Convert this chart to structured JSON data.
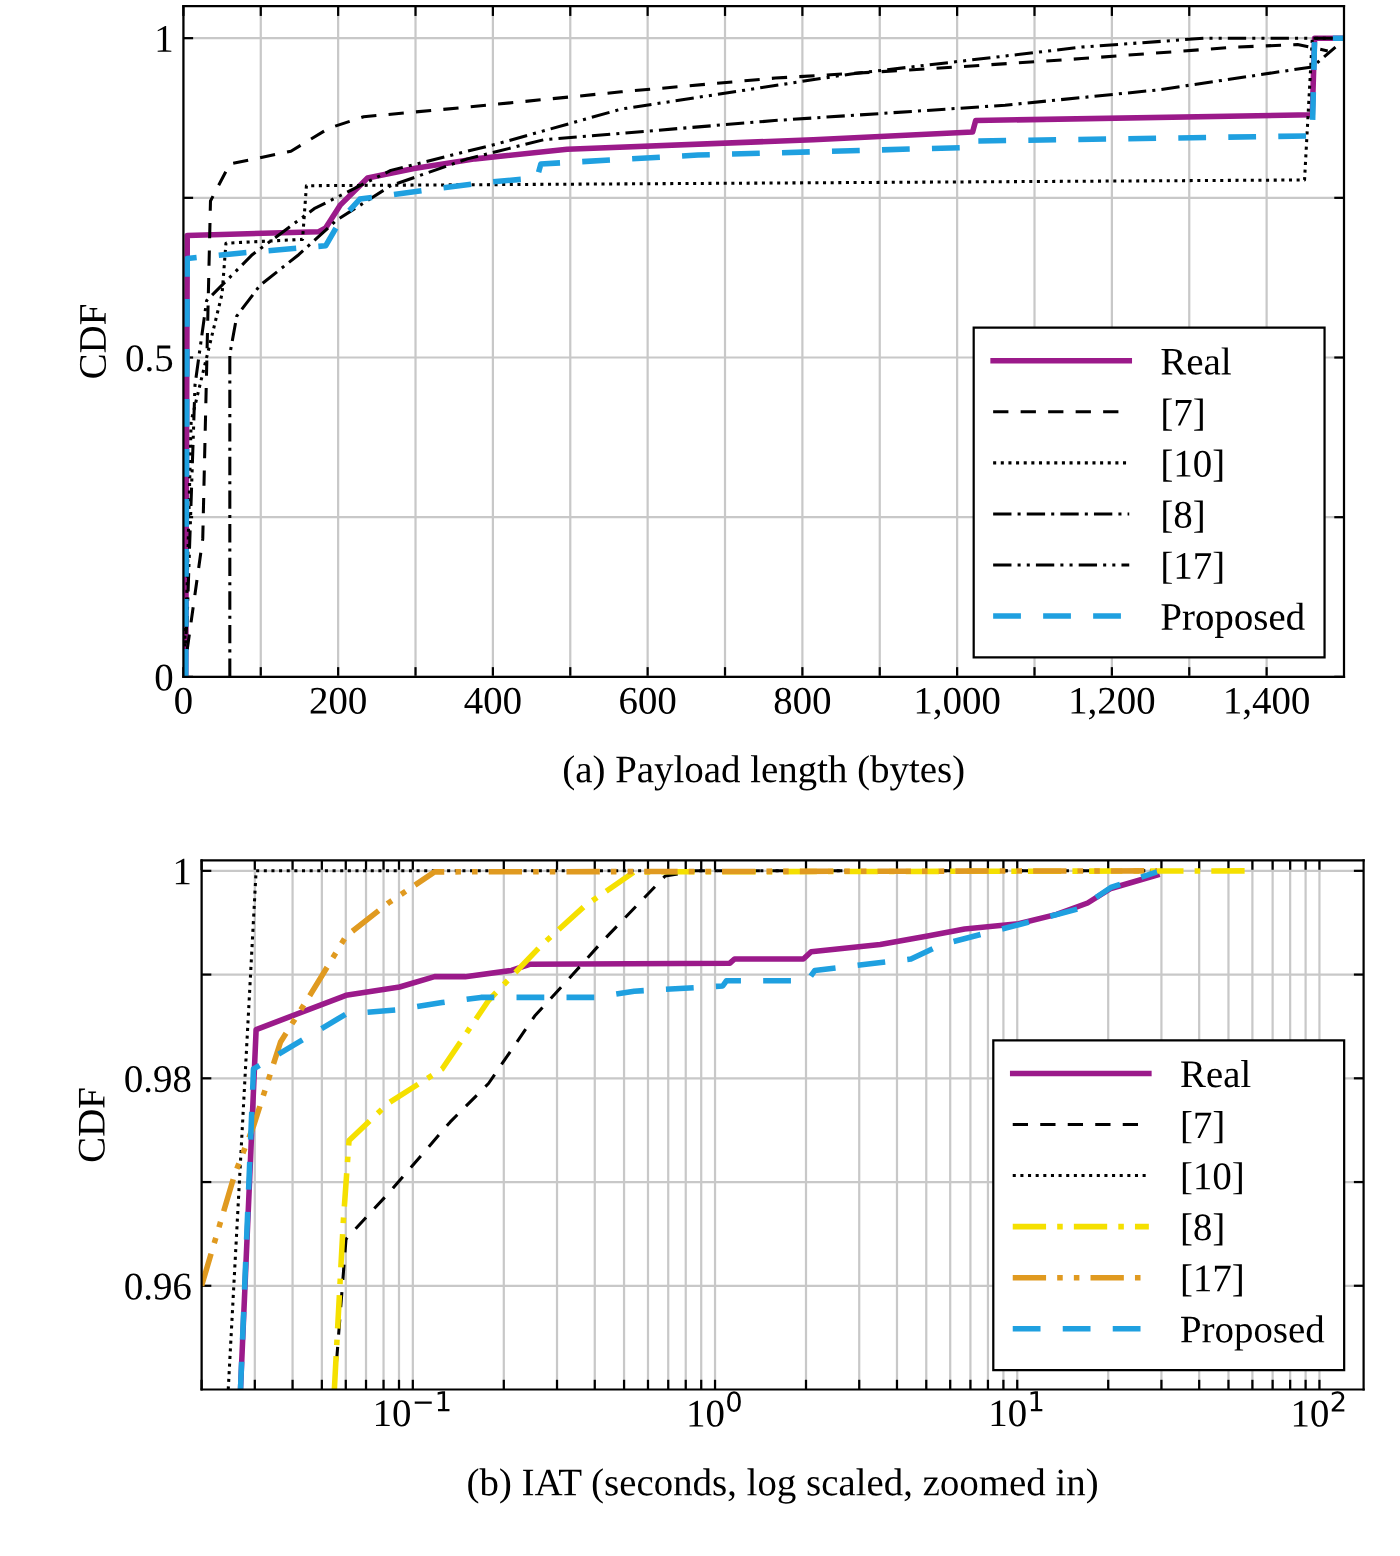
{
  "chart_data": [
    {
      "type": "line",
      "xlabel": "(a) Payload length (bytes)",
      "ylabel": "CDF",
      "xlim": [
        0,
        1500
      ],
      "ylim": [
        0,
        1.05
      ],
      "xticks": [
        0,
        {
          "value": 100,
          "label": null
        },
        200,
        {
          "value": 300,
          "label": null
        },
        400,
        {
          "value": 500,
          "label": null
        },
        600,
        {
          "value": 700,
          "label": null
        },
        800,
        {
          "value": 900,
          "label": null
        },
        {
          "value": 1000,
          "label": "1,000"
        },
        {
          "value": 1100,
          "label": null
        },
        {
          "value": 1200,
          "label": "1,200"
        },
        {
          "value": 1300,
          "label": null
        },
        {
          "value": 1400,
          "label": "1,400"
        }
      ],
      "yticks": [
        0,
        {
          "value": 0.25,
          "label": null
        },
        0.5,
        {
          "value": 0.75,
          "label": null
        },
        1
      ],
      "grid": true,
      "legend": "bottom right",
      "series": [
        {
          "name": "Real",
          "color": "#9b1a8a",
          "line_style": "solid",
          "x": [
            3,
            5,
            175,
            184,
            203,
            238,
            298,
            377,
            496,
            814,
            1020,
            1024,
            1459,
            1462,
            1500
          ],
          "values": [
            0,
            0.691,
            0.697,
            0.703,
            0.739,
            0.781,
            0.796,
            0.811,
            0.826,
            0.841,
            0.853,
            0.871,
            0.88,
            1.0,
            1.0
          ]
        },
        {
          "name": "[7]",
          "color": "#000000",
          "line_style": "dashed",
          "x": [
            0,
            25,
            35,
            60,
            139,
            188,
            233,
            367,
            566,
            765,
            963,
            1161,
            1360,
            1440,
            1479
          ],
          "values": [
            0,
            0.216,
            0.745,
            0.803,
            0.823,
            0.859,
            0.877,
            0.892,
            0.916,
            0.9375,
            0.952,
            0.968,
            0.986,
            0.99,
            0.98
          ]
        },
        {
          "name": "[10]",
          "color": "#000000",
          "line_style": "dotted",
          "x": [
            0,
            5,
            10,
            50,
            55,
            154,
            159,
            1449,
            1459,
            1500
          ],
          "values": [
            0,
            0.15,
            0.4,
            0.6,
            0.679,
            0.685,
            0.769,
            0.778,
            1.0,
            1.0
          ]
        },
        {
          "name": "[8]",
          "color": "#000000",
          "line_style": "dashdot",
          "x": [
            60,
            60,
            69,
            99,
            149,
            198,
            268,
            367,
            466,
            764,
            1062,
            1260,
            1459,
            1489
          ],
          "values": [
            0,
            0.505,
            0.565,
            0.613,
            0.661,
            0.715,
            0.769,
            0.811,
            0.841,
            0.871,
            0.895,
            0.919,
            0.955,
            0.986
          ]
        },
        {
          "name": "[17]",
          "color": "#000000",
          "line_style": "dashdotdot",
          "x": [
            0,
            5,
            15,
            30,
            89,
            169,
            268,
            407,
            566,
            863,
            1161,
            1320,
            1500
          ],
          "values": [
            0,
            0.096,
            0.457,
            0.589,
            0.661,
            0.733,
            0.793,
            0.835,
            0.889,
            0.944,
            0.986,
            1.0,
            1.0
          ]
        },
        {
          "name": "Proposed",
          "color": "#1fa0e0",
          "line_style": "dashed",
          "x": [
            3,
            5,
            69,
            184,
            203,
            228,
            318,
            397,
            457,
            462,
            665,
            1017,
            1022,
            1459,
            1462,
            1500
          ],
          "values": [
            0,
            0.655,
            0.663,
            0.675,
            0.715,
            0.748,
            0.763,
            0.775,
            0.781,
            0.803,
            0.817,
            0.829,
            0.839,
            0.847,
            1.0,
            1.0
          ]
        }
      ]
    },
    {
      "type": "line",
      "xlabel": "(b) IAT (seconds, log scaled, zoomed in)",
      "ylabel": "CDF",
      "log": "x",
      "xlim": [
        0.02,
        140
      ],
      "ylim": [
        0.95,
        1.001
      ],
      "xticks": [
        {
          "value": 0.02,
          "label": null
        },
        {
          "value": 0.03,
          "label": null
        },
        {
          "value": 0.04,
          "label": null
        },
        {
          "value": 0.05,
          "label": null
        },
        {
          "value": 0.06,
          "label": null
        },
        {
          "value": 0.07,
          "label": null
        },
        {
          "value": 0.08,
          "label": null
        },
        {
          "value": 0.09,
          "label": null
        },
        {
          "value": 0.1,
          "label": "10$^{−1}$"
        },
        {
          "value": 0.2,
          "label": null
        },
        {
          "value": 0.3,
          "label": null
        },
        {
          "value": 0.4,
          "label": null
        },
        {
          "value": 0.5,
          "label": null
        },
        {
          "value": 0.6,
          "label": null
        },
        {
          "value": 0.7,
          "label": null
        },
        {
          "value": 0.8,
          "label": null
        },
        {
          "value": 0.9,
          "label": null
        },
        {
          "value": 1,
          "label": "10$^{0}$"
        },
        {
          "value": 2,
          "label": null
        },
        {
          "value": 3,
          "label": null
        },
        {
          "value": 4,
          "label": null
        },
        {
          "value": 5,
          "label": null
        },
        {
          "value": 6,
          "label": null
        },
        {
          "value": 7,
          "label": null
        },
        {
          "value": 8,
          "label": null
        },
        {
          "value": 9,
          "label": null
        },
        {
          "value": 10,
          "label": "10$^{1}$"
        },
        {
          "value": 20,
          "label": null
        },
        {
          "value": 30,
          "label": null
        },
        {
          "value": 40,
          "label": null
        },
        {
          "value": 50,
          "label": null
        },
        {
          "value": 60,
          "label": null
        },
        {
          "value": 70,
          "label": null
        },
        {
          "value": 80,
          "label": null
        },
        {
          "value": 90,
          "label": null
        },
        {
          "value": 100,
          "label": "10$^{2}$"
        }
      ],
      "yticks": [
        0.96,
        {
          "value": 0.97,
          "label": null
        },
        0.98,
        {
          "value": 0.99,
          "label": null
        },
        1
      ],
      "grid": true,
      "legend": "bottom right",
      "series": [
        {
          "name": "Real",
          "color": "#9b1a8a",
          "line_style": "solid",
          "x": [
            0.0269,
            0.0303,
            0.0601,
            0.0904,
            0.118,
            0.149,
            0.212,
            0.245,
            1.12,
            1.16,
            1.96,
            2.08,
            3.52,
            5.0,
            6.7,
            10.1,
            13.5,
            17.1,
            20.4,
            29.0
          ],
          "values": [
            0.95,
            0.9847,
            0.988,
            0.9888,
            0.9898,
            0.9898,
            0.9904,
            0.991,
            0.9911,
            0.9915,
            0.9915,
            0.9922,
            0.9929,
            0.9937,
            0.9944,
            0.9949,
            0.9958,
            0.9969,
            0.9983,
            0.9996
          ]
        },
        {
          "name": "[7]",
          "color": "#000000",
          "line_style": "dashed",
          "x": [
            0.055,
            0.0601,
            0.083,
            0.133,
            0.178,
            0.253,
            0.338,
            0.427,
            0.684,
            0.86,
            29.0
          ],
          "values": [
            0.95,
            0.9645,
            0.9689,
            0.9758,
            0.9795,
            0.986,
            0.99,
            0.9933,
            0.9995,
            1.0,
            1.0
          ]
        },
        {
          "name": "[10]",
          "color": "#000000",
          "line_style": "dotted",
          "x": [
            0.0245,
            0.0303,
            29.0
          ],
          "values": [
            0.95,
            1.0,
            1.0
          ]
        },
        {
          "name": "[8]",
          "color": "#f5e000",
          "line_style": "dashdot",
          "x": [
            0.055,
            0.0589,
            0.0615,
            0.083,
            0.125,
            0.178,
            0.268,
            0.37,
            0.54,
            58.7
          ],
          "values": [
            0.95,
            0.9663,
            0.974,
            0.9776,
            0.9809,
            0.9875,
            0.9929,
            0.9966,
            0.9999,
            1.0
          ]
        },
        {
          "name": "[17]",
          "color": "#e09a20",
          "line_style": "dashdotdot",
          "x": [
            0.02,
            0.0257,
            0.0297,
            0.0365,
            0.0461,
            0.0601,
            0.083,
            0.118,
            29.0
          ],
          "values": [
            0.96,
            0.9707,
            0.9754,
            0.9835,
            0.9882,
            0.9937,
            0.9969,
            0.9999,
            1.0
          ]
        },
        {
          "name": "Proposed",
          "color": "#1fa0e0",
          "line_style": "dashed",
          "x": [
            0.0269,
            0.0297,
            0.0344,
            0.0601,
            0.088,
            0.125,
            0.168,
            0.403,
            0.54,
            1.06,
            1.09,
            2.02,
            2.14,
            4.45,
            5.63,
            10.1,
            16.2,
            20.4,
            29.0
          ],
          "values": [
            0.95,
            0.9809,
            0.982,
            0.9862,
            0.9866,
            0.9873,
            0.9878,
            0.9878,
            0.9884,
            0.9889,
            0.9894,
            0.9894,
            0.9904,
            0.9915,
            0.9929,
            0.9948,
            0.9964,
            0.9984,
            0.9999
          ]
        }
      ]
    }
  ]
}
